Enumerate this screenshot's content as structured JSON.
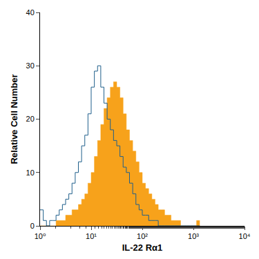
{
  "chart_data": {
    "type": "histogram",
    "x_label": "IL-22 Rα1",
    "y_label": "Relative Cell Number",
    "log": "x",
    "grid": false,
    "xlim": [
      1,
      10000
    ],
    "xticks": [
      {
        "value": 1,
        "label": "10⁰"
      },
      {
        "value": 10,
        "label": "10¹"
      },
      {
        "value": 100,
        "label": "10²"
      },
      {
        "value": 1000,
        "label": "10³"
      },
      {
        "value": 10000,
        "label": "10⁴"
      }
    ],
    "ylim": [
      0,
      40
    ],
    "yticks": [
      0,
      10,
      20,
      30,
      40
    ],
    "bins": [
      1,
      1.155,
      1.334,
      1.54,
      1.778,
      2.054,
      2.371,
      2.738,
      3.162,
      3.652,
      4.217,
      4.87,
      5.623,
      6.494,
      7.499,
      8.66,
      10,
      11.55,
      13.34,
      15.4,
      17.78,
      20.54,
      23.71,
      27.38,
      31.62,
      36.52,
      42.17,
      48.7,
      56.23,
      64.94,
      74.99,
      86.6,
      100,
      115.5,
      133.4,
      154.0,
      177.8,
      205.4,
      237.1,
      273.8,
      316.2,
      365.2,
      421.7,
      487.0,
      562.3,
      649.4,
      749.9,
      866.0,
      1000,
      1155,
      1334
    ],
    "series": [
      {
        "type": "area",
        "color": "#f7a21b",
        "values": [
          0,
          0,
          0,
          0,
          0,
          1,
          1,
          1,
          2,
          2,
          3,
          3,
          4,
          5,
          6,
          8,
          10,
          13,
          16,
          19,
          22,
          24,
          26,
          27,
          26,
          24,
          21,
          18,
          16,
          14,
          12,
          10,
          8,
          7,
          6,
          5,
          4,
          3,
          3,
          2,
          2,
          1,
          1,
          1,
          0,
          0,
          0,
          0,
          0,
          1
        ]
      },
      {
        "type": "line",
        "color": "#1f5f8b",
        "values": [
          3,
          1,
          0,
          1,
          1,
          2,
          3,
          4,
          5,
          6,
          8,
          10,
          12,
          15,
          17,
          21,
          26,
          29,
          30,
          26,
          23,
          20,
          18,
          16,
          15,
          13,
          11,
          10,
          8,
          6,
          4,
          3,
          2,
          2,
          1,
          1,
          1,
          0,
          0,
          0,
          0,
          0,
          0,
          0,
          0,
          0,
          0,
          0,
          0,
          0
        ]
      }
    ]
  }
}
